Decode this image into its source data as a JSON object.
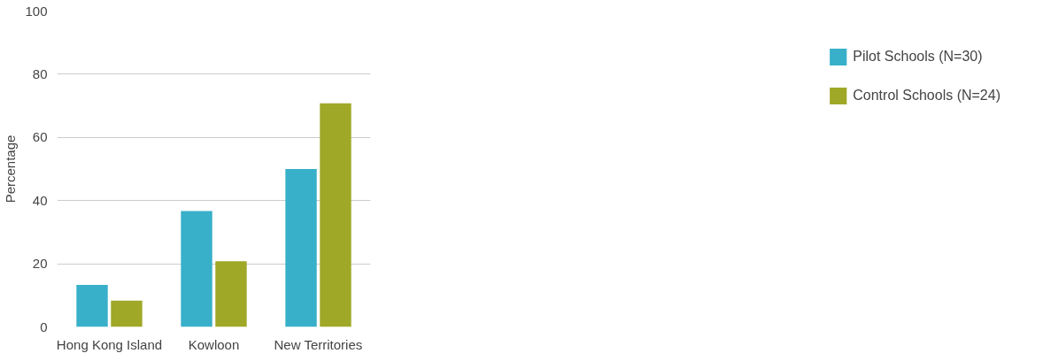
{
  "chart_data": {
    "type": "bar",
    "ylabel": "Percentage",
    "categories": [
      "Hong Kong Island",
      "Kowloon",
      "New Territories"
    ],
    "series": [
      {
        "name": "Pilot Schools (N=30)",
        "color": "#38b0c9",
        "values": [
          13.3,
          36.7,
          50
        ]
      },
      {
        "name": "Control Schools (N=24)",
        "color": "#a0a828",
        "values": [
          8.3,
          20.8,
          70.8
        ]
      }
    ],
    "ylim": [
      0,
      100
    ],
    "yticks": [
      0,
      20,
      40,
      60,
      80,
      100
    ],
    "grid": "y",
    "legend": "right"
  }
}
